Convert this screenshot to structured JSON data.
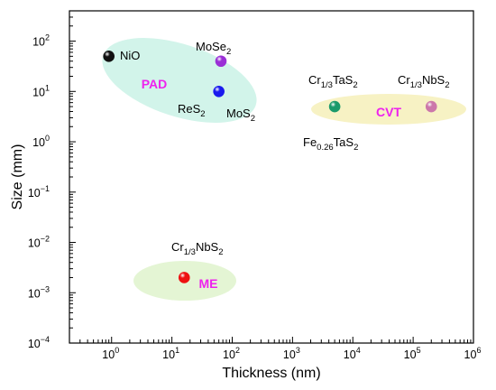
{
  "chart_data": {
    "type": "scatter",
    "xlabel": "Thickness (nm)",
    "ylabel": "Size (mm)",
    "xscale": "log",
    "yscale": "log",
    "xlim": [
      0.2,
      1000000
    ],
    "ylim": [
      0.0001,
      400
    ],
    "grid": false,
    "x_ticks": [
      {
        "value": 1,
        "base": "10",
        "exp": "0"
      },
      {
        "value": 10,
        "base": "10",
        "exp": "1"
      },
      {
        "value": 100,
        "base": "10",
        "exp": "2"
      },
      {
        "value": 1000,
        "base": "10",
        "exp": "3"
      },
      {
        "value": 10000,
        "base": "10",
        "exp": "4"
      },
      {
        "value": 100000,
        "base": "10",
        "exp": "5"
      },
      {
        "value": 1000000,
        "base": "10",
        "exp": "6"
      }
    ],
    "y_ticks": [
      {
        "value": 0.0001,
        "base": "10",
        "exp": "−4"
      },
      {
        "value": 0.001,
        "base": "10",
        "exp": "−3"
      },
      {
        "value": 0.01,
        "base": "10",
        "exp": "−2"
      },
      {
        "value": 0.1,
        "base": "10",
        "exp": "−1"
      },
      {
        "value": 1,
        "base": "10",
        "exp": "0"
      },
      {
        "value": 10,
        "base": "10",
        "exp": "1"
      },
      {
        "value": 100,
        "base": "10",
        "exp": "2"
      }
    ],
    "points": [
      {
        "label": "NiO",
        "x": 0.9,
        "y": 50,
        "color": "#111111"
      },
      {
        "label": "MoSe2",
        "x": 65,
        "y": 40,
        "color": "#9a2fd6"
      },
      {
        "label": "ReS2 / MoS2",
        "x": 60,
        "y": 10,
        "color": "#1a1aee"
      },
      {
        "label": "Cr1/3TaS2 / Fe0.26TaS2",
        "x": 5000,
        "y": 5,
        "color": "#1a9a6a"
      },
      {
        "label": "Cr1/3NbS2",
        "x": 200000,
        "y": 5,
        "color": "#cc77aa"
      },
      {
        "label": "Cr1/3NbS2",
        "x": 16,
        "y": 0.002,
        "color": "#ee1111"
      }
    ],
    "regions": [
      {
        "label": "PAD",
        "color": "#d2f4ea",
        "label_color": "#ee22ee"
      },
      {
        "label": "CVT",
        "color": "#f7f2c4",
        "label_color": "#ee22ee"
      },
      {
        "label": "ME",
        "color": "#e4f5d4",
        "label_color": "#ee22ee"
      }
    ],
    "annotations": [
      {
        "id": "nio",
        "parts": [
          {
            "t": "NiO"
          }
        ]
      },
      {
        "id": "mose2",
        "parts": [
          {
            "t": "MoSe"
          },
          {
            "t": "2",
            "sub": true
          }
        ]
      },
      {
        "id": "res2",
        "parts": [
          {
            "t": "ReS"
          },
          {
            "t": "2",
            "sub": true
          }
        ]
      },
      {
        "id": "mos2",
        "parts": [
          {
            "t": "MoS"
          },
          {
            "t": "2",
            "sub": true
          }
        ]
      },
      {
        "id": "crtas2",
        "parts": [
          {
            "t": "Cr"
          },
          {
            "t": "1/3",
            "sub": true
          },
          {
            "t": "TaS"
          },
          {
            "t": "2",
            "sub": true
          }
        ]
      },
      {
        "id": "crnbs2-cvt",
        "parts": [
          {
            "t": "Cr"
          },
          {
            "t": "1/3",
            "sub": true
          },
          {
            "t": "NbS"
          },
          {
            "t": "2",
            "sub": true
          }
        ]
      },
      {
        "id": "fetas2",
        "parts": [
          {
            "t": "Fe"
          },
          {
            "t": "0.26",
            "sub": true
          },
          {
            "t": "TaS"
          },
          {
            "t": "2",
            "sub": true
          }
        ]
      },
      {
        "id": "crnbs2-me",
        "parts": [
          {
            "t": "Cr"
          },
          {
            "t": "1/3",
            "sub": true
          },
          {
            "t": "NbS"
          },
          {
            "t": "2",
            "sub": true
          }
        ]
      }
    ]
  }
}
